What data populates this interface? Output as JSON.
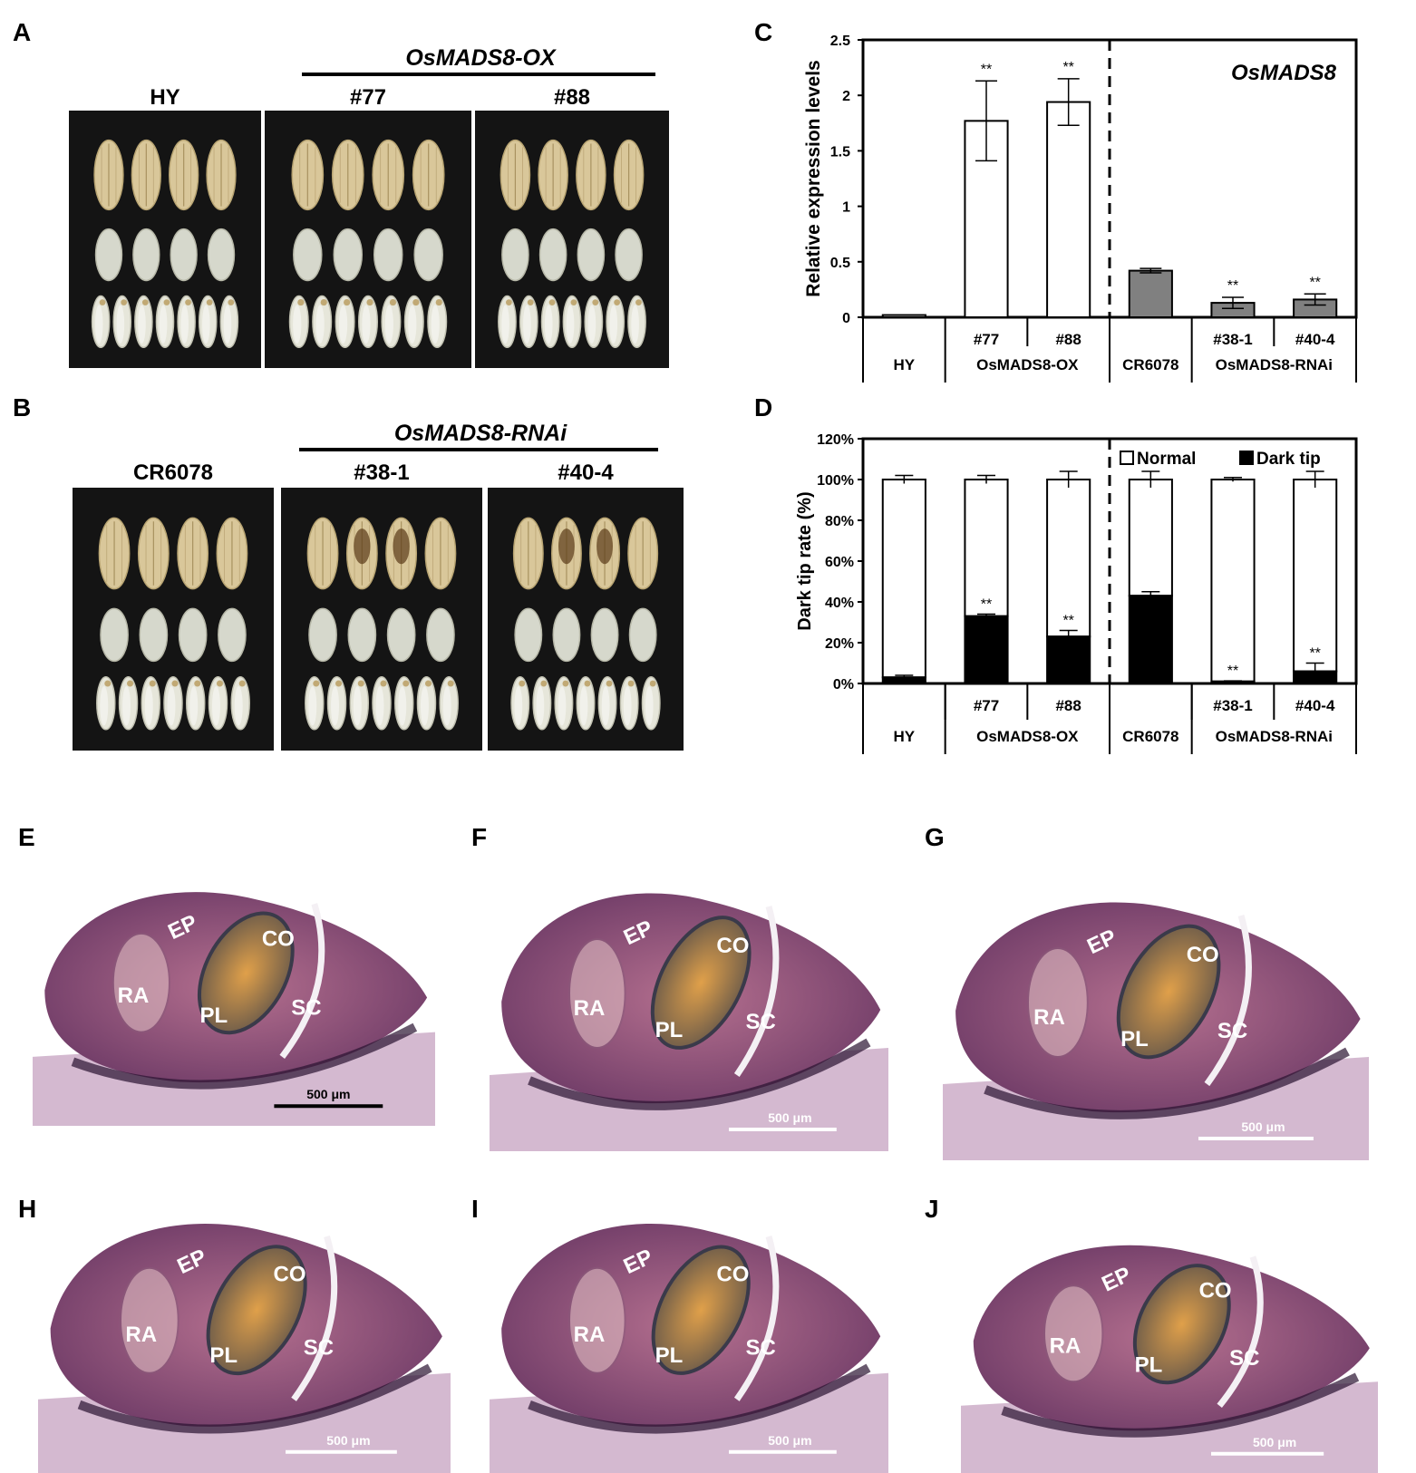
{
  "panels": {
    "A": {
      "label": "A",
      "group_title": "OsMADS8-OX",
      "photos": [
        {
          "label": "HY"
        },
        {
          "label": "#77"
        },
        {
          "label": "#88"
        }
      ]
    },
    "B": {
      "label": "B",
      "group_title": "OsMADS8-RNAi",
      "photos": [
        {
          "label": "CR6078"
        },
        {
          "label": "#38-1"
        },
        {
          "label": "#40-4"
        }
      ]
    },
    "sections": [
      {
        "label": "E",
        "scale": "500 μm",
        "tags": {
          "ep": "EP",
          "co": "CO",
          "ra": "RA",
          "pl": "PL",
          "sc": "SC"
        }
      },
      {
        "label": "F",
        "scale": "500 μm",
        "tags": {
          "ep": "EP",
          "co": "CO",
          "ra": "RA",
          "pl": "PL",
          "sc": "SC"
        }
      },
      {
        "label": "G",
        "scale": "500 μm",
        "tags": {
          "ep": "EP",
          "co": "CO",
          "ra": "RA",
          "pl": "PL",
          "sc": "SC"
        }
      },
      {
        "label": "H",
        "scale": "500 μm",
        "tags": {
          "ep": "EP",
          "co": "CO",
          "ra": "RA",
          "pl": "PL",
          "sc": "SC"
        }
      },
      {
        "label": "I",
        "scale": "500 μm",
        "tags": {
          "ep": "EP",
          "co": "CO",
          "ra": "RA",
          "pl": "PL",
          "sc": "SC"
        }
      },
      {
        "label": "J",
        "scale": "500 μm",
        "tags": {
          "ep": "EP",
          "co": "CO",
          "ra": "RA",
          "pl": "PL",
          "sc": "SC"
        }
      }
    ]
  },
  "chart_data": [
    {
      "panel": "C",
      "type": "bar",
      "title": "OsMADS8",
      "ylabel": "Relative expression levels",
      "ylim": [
        0,
        2.5
      ],
      "yticks": [
        "0",
        "0.5",
        "1",
        "1.5",
        "2",
        "2.5"
      ],
      "categories": [
        "",
        "#77",
        "#88",
        "",
        "#38-1",
        "#40-4"
      ],
      "groups": [
        "HY",
        "OsMADS8-OX",
        "CR6078",
        "OsMADS8-RNAi"
      ],
      "values": [
        0.02,
        1.77,
        1.94,
        0.42,
        0.13,
        0.16
      ],
      "errors": [
        0.0,
        0.36,
        0.21,
        0.02,
        0.05,
        0.05
      ],
      "fills": [
        "#ffffff",
        "#ffffff",
        "#ffffff",
        "#808080",
        "#808080",
        "#808080"
      ],
      "significance": [
        "",
        "**",
        "**",
        "",
        "**",
        "**"
      ]
    },
    {
      "panel": "D",
      "type": "bar",
      "stacked": true,
      "ylabel": "Dark tip rate (%)",
      "ylim": [
        0,
        120
      ],
      "yticks": [
        "0%",
        "20%",
        "40%",
        "60%",
        "80%",
        "100%",
        "120%"
      ],
      "categories": [
        "",
        "#77",
        "#88",
        "",
        "#38-1",
        "#40-4"
      ],
      "groups": [
        "HY",
        "OsMADS8-OX",
        "CR6078",
        "OsMADS8-RNAi"
      ],
      "legend_position": "top-right",
      "series": [
        {
          "name": "Dark tip",
          "color": "#000000",
          "values": [
            3,
            33,
            23,
            43,
            1,
            6
          ],
          "errors": [
            1,
            1,
            3,
            2,
            0.3,
            4
          ]
        },
        {
          "name": "Normal",
          "color": "#ffffff",
          "values": [
            97,
            67,
            77,
            57,
            99,
            94
          ],
          "errors": [
            2,
            2,
            4,
            4,
            1,
            4
          ]
        }
      ],
      "significance": [
        "",
        "**",
        "**",
        "",
        "**",
        "**"
      ]
    }
  ]
}
